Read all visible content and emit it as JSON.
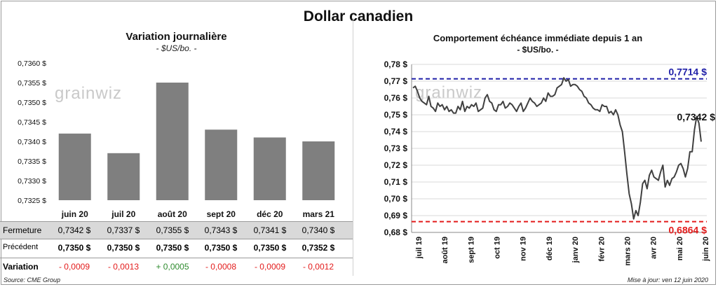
{
  "title": "Dollar canadien",
  "left": {
    "title": "Variation  journalière",
    "subtitle": "- $US/bo. -",
    "watermark": "grainwiz"
  },
  "right": {
    "title": "Comportement échéance immédiate depuis 1 an",
    "subtitle": "- $US/bo. -",
    "watermark": "grainwiz"
  },
  "table": {
    "rows": [
      {
        "label": "Fermeture",
        "values": [
          "0,7342  $",
          "0,7337  $",
          "0,7355  $",
          "0,7343  $",
          "0,7341  $",
          "0,7340  $"
        ]
      },
      {
        "label": "Précédent",
        "values": [
          "0,7350 $",
          "0,7350 $",
          "0,7350 $",
          "0,7350 $",
          "0,7350 $",
          "0,7352 $"
        ]
      },
      {
        "label": "Variation",
        "values": [
          "- 0,0009",
          "- 0,0013",
          "+ 0,0005",
          "- 0,0008",
          "- 0,0009",
          "- 0,0012"
        ]
      }
    ]
  },
  "colors": {
    "bar": "#7f7f7f",
    "line": "#404040",
    "high": "#1f1fa8",
    "low": "#e31b1b",
    "neg": "#e31b1b",
    "pos": "#2e8b2e"
  },
  "footer": {
    "source": "Source: CME Group",
    "update": "Mise à jour: ven 12 juin 2020"
  },
  "chart_data": [
    {
      "type": "bar",
      "categories": [
        "juin 20",
        "juil 20",
        "août 20",
        "sept 20",
        "déc 20",
        "mars 21"
      ],
      "values": [
        0.7342,
        0.7337,
        0.7355,
        0.7343,
        0.7341,
        0.734
      ],
      "ylim": [
        0.7325,
        0.736
      ],
      "ytick_values": [
        0.7325,
        0.733,
        0.7335,
        0.734,
        0.7345,
        0.735,
        0.7355,
        0.736
      ],
      "ytick_labels": [
        "0,7325 $",
        "0,7330 $",
        "0,7335 $",
        "0,7340 $",
        "0,7345 $",
        "0,7350 $",
        "0,7355 $",
        "0,7360 $"
      ],
      "grid": false
    },
    {
      "type": "line",
      "ylim": [
        0.68,
        0.78
      ],
      "ytick_values": [
        0.68,
        0.69,
        0.7,
        0.71,
        0.72,
        0.73,
        0.74,
        0.75,
        0.76,
        0.77,
        0.78
      ],
      "ytick_labels": [
        "0,68 $",
        "0,69 $",
        "0,70 $",
        "0,71 $",
        "0,72 $",
        "0,73 $",
        "0,74 $",
        "0,75 $",
        "0,76 $",
        "0,77 $",
        "0,78 $"
      ],
      "xtick_labels": [
        "juil 19",
        "août 19",
        "sept 19",
        "oct 19",
        "nov 19",
        "déc 19",
        "janv 20",
        "févr 20",
        "mars 20",
        "avr 20",
        "mai 20",
        "juin 20"
      ],
      "grid": true,
      "high": {
        "value": 0.7714,
        "label": "0,7714 $"
      },
      "low": {
        "value": 0.6864,
        "label": "0,6864 $"
      },
      "last": {
        "value": 0.7342,
        "label": "0,7342 $"
      },
      "series": [
        {
          "values": [
            0.766,
            0.767,
            0.764,
            0.76,
            0.758,
            0.757,
            0.756,
            0.761,
            0.755,
            0.754,
            0.752,
            0.757,
            0.755,
            0.756,
            0.753,
            0.755,
            0.752,
            0.753,
            0.751,
            0.751,
            0.755,
            0.753,
            0.758,
            0.752,
            0.755,
            0.754,
            0.756,
            0.755,
            0.757,
            0.752,
            0.753,
            0.754,
            0.76,
            0.762,
            0.758,
            0.757,
            0.753,
            0.752,
            0.756,
            0.756,
            0.758,
            0.754,
            0.755,
            0.757,
            0.756,
            0.754,
            0.752,
            0.755,
            0.757,
            0.752,
            0.754,
            0.757,
            0.76,
            0.758,
            0.757,
            0.755,
            0.756,
            0.757,
            0.76,
            0.758,
            0.763,
            0.761,
            0.761,
            0.762,
            0.766,
            0.767,
            0.768,
            0.772,
            0.77,
            0.771,
            0.767,
            0.768,
            0.768,
            0.767,
            0.765,
            0.764,
            0.761,
            0.76,
            0.757,
            0.756,
            0.754,
            0.753,
            0.753,
            0.752,
            0.756,
            0.755,
            0.755,
            0.751,
            0.752,
            0.75,
            0.753,
            0.75,
            0.744,
            0.74,
            0.728,
            0.715,
            0.703,
            0.697,
            0.688,
            0.693,
            0.69,
            0.698,
            0.709,
            0.711,
            0.706,
            0.714,
            0.717,
            0.713,
            0.712,
            0.711,
            0.716,
            0.72,
            0.707,
            0.711,
            0.708,
            0.712,
            0.713,
            0.716,
            0.72,
            0.721,
            0.718,
            0.713,
            0.718,
            0.728,
            0.728,
            0.741,
            0.749,
            0.745,
            0.734
          ]
        }
      ]
    }
  ]
}
